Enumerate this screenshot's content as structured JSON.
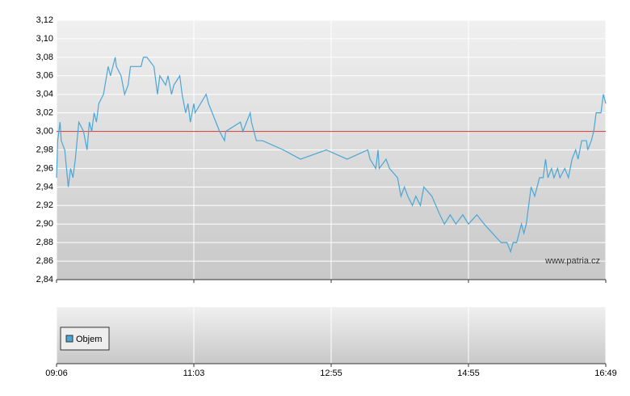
{
  "chart_data": {
    "type": "line",
    "x": [
      "09:06",
      "09:07",
      "09:09",
      "09:10",
      "09:13",
      "09:16",
      "09:18",
      "09:20",
      "09:22",
      "09:25",
      "09:29",
      "09:32",
      "09:34",
      "09:36",
      "09:38",
      "09:40",
      "09:42",
      "09:46",
      "09:50",
      "09:52",
      "09:56",
      "09:57",
      "10:01",
      "10:04",
      "10:07",
      "10:09",
      "10:12",
      "10:18",
      "10:20",
      "10:23",
      "10:29",
      "10:32",
      "10:34",
      "10:39",
      "10:41",
      "10:44",
      "10:46",
      "10:51",
      "10:53",
      "10:56",
      "10:58",
      "11:00",
      "11:03",
      "11:04",
      "11:13",
      "11:15",
      "11:21",
      "11:24",
      "11:28",
      "11:29",
      "11:41",
      "11:43",
      "11:49",
      "11:50",
      "11:54",
      "11:59",
      "12:16",
      "12:30",
      "12:51",
      "13:09",
      "13:27",
      "13:29",
      "13:34",
      "13:36",
      "13:37",
      "13:43",
      "13:46",
      "13:53",
      "13:56",
      "13:59",
      "14:02",
      "14:06",
      "14:09",
      "14:13",
      "14:16",
      "14:23",
      "14:30",
      "14:34",
      "14:39",
      "14:44",
      "14:50",
      "14:55",
      "15:02",
      "15:08",
      "15:22",
      "15:27",
      "15:30",
      "15:32",
      "15:35",
      "15:39",
      "15:41",
      "15:43",
      "15:45",
      "15:47",
      "15:50",
      "15:54",
      "15:57",
      "15:59",
      "16:01",
      "16:04",
      "16:06",
      "16:09",
      "16:11",
      "16:15",
      "16:18",
      "16:21",
      "16:24",
      "16:26",
      "16:29",
      "16:33",
      "16:34",
      "16:37",
      "16:39",
      "16:41",
      "16:45",
      "16:47",
      "16:49"
    ],
    "series": [
      {
        "color": "#4aa6d6",
        "values": [
          2.95,
          2.99,
          3.01,
          2.99,
          2.98,
          2.94,
          2.96,
          2.95,
          2.97,
          3.01,
          3.0,
          2.98,
          3.01,
          3.0,
          3.02,
          3.01,
          3.03,
          3.04,
          3.07,
          3.06,
          3.08,
          3.07,
          3.06,
          3.04,
          3.05,
          3.07,
          3.07,
          3.07,
          3.08,
          3.08,
          3.07,
          3.04,
          3.06,
          3.05,
          3.06,
          3.04,
          3.05,
          3.06,
          3.04,
          3.02,
          3.03,
          3.01,
          3.03,
          3.02,
          3.04,
          3.03,
          3.01,
          3.0,
          2.99,
          3.0,
          3.01,
          3.0,
          3.02,
          3.01,
          2.99,
          2.99,
          2.98,
          2.97,
          2.98,
          2.97,
          2.98,
          2.97,
          2.96,
          2.98,
          2.96,
          2.97,
          2.96,
          2.95,
          2.93,
          2.94,
          2.93,
          2.92,
          2.93,
          2.92,
          2.94,
          2.93,
          2.91,
          2.9,
          2.91,
          2.9,
          2.91,
          2.9,
          2.91,
          2.9,
          2.88,
          2.88,
          2.87,
          2.88,
          2.88,
          2.9,
          2.89,
          2.9,
          2.92,
          2.94,
          2.93,
          2.95,
          2.95,
          2.97,
          2.95,
          2.96,
          2.95,
          2.96,
          2.95,
          2.96,
          2.95,
          2.97,
          2.98,
          2.97,
          2.99,
          2.99,
          2.98,
          2.99,
          3.0,
          3.02,
          3.02,
          3.04,
          3.03
        ]
      }
    ],
    "reference_line": {
      "value": 3.0,
      "color": "#cc3333"
    },
    "ylim": [
      2.84,
      3.12
    ],
    "yticks": [
      {
        "value": 2.84,
        "label": "2,84"
      },
      {
        "value": 2.86,
        "label": "2,86"
      },
      {
        "value": 2.88,
        "label": "2,88"
      },
      {
        "value": 2.9,
        "label": "2,90"
      },
      {
        "value": 2.92,
        "label": "2,92"
      },
      {
        "value": 2.94,
        "label": "2,94"
      },
      {
        "value": 2.96,
        "label": "2,96"
      },
      {
        "value": 2.98,
        "label": "2,98"
      },
      {
        "value": 3.0,
        "label": "3,00"
      },
      {
        "value": 3.02,
        "label": "3,02"
      },
      {
        "value": 3.04,
        "label": "3,04"
      },
      {
        "value": 3.06,
        "label": "3,06"
      },
      {
        "value": 3.08,
        "label": "3,08"
      },
      {
        "value": 3.1,
        "label": "3,10"
      },
      {
        "value": 3.12,
        "label": "3,12"
      }
    ],
    "xlim": [
      "09:06",
      "16:49"
    ],
    "xticks": [
      "09:06",
      "11:03",
      "12:55",
      "14:55",
      "16:49"
    ],
    "grid": true,
    "source": "www.patria.cz",
    "volume_legend": "Objem",
    "volume_color": "#4aa6d6"
  }
}
